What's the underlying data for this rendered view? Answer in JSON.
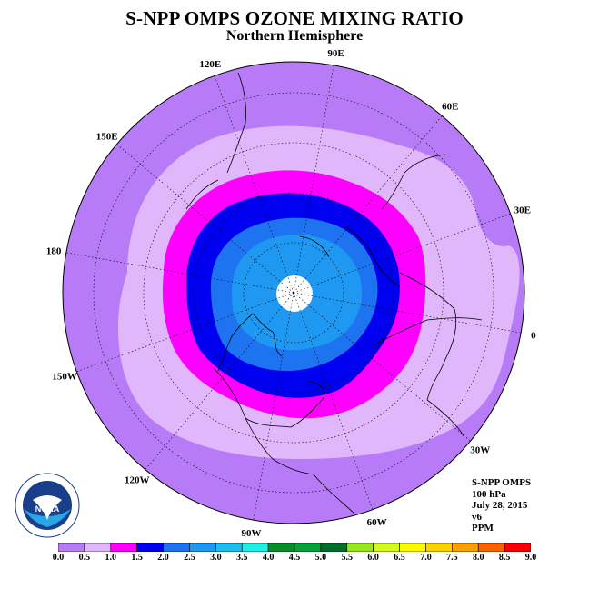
{
  "title": "S-NPP OMPS OZONE MIXING RATIO",
  "subtitle": "Northern Hemisphere",
  "longitude_labels": [
    "90E",
    "60E",
    "30E",
    "0",
    "30W",
    "60W",
    "90W",
    "120W",
    "150W",
    "180",
    "150E",
    "120E"
  ],
  "info": {
    "instrument": "S-NPP OMPS",
    "level": "100 hPa",
    "date": "July 28, 2015",
    "version": "v6",
    "units": "PPM"
  },
  "logo": {
    "text": "NOAA",
    "ring_text": "NATIONAL OCEANIC AND ATMOSPHERIC ADMINISTRATION · U.S. DEPARTMENT OF COMMERCE"
  },
  "colorbar": {
    "ticks": [
      "0.0",
      "0.5",
      "1.0",
      "1.5",
      "2.0",
      "2.5",
      "3.0",
      "3.5",
      "4.0",
      "4.5",
      "5.0",
      "5.5",
      "6.0",
      "6.5",
      "7.0",
      "7.5",
      "8.0",
      "8.5",
      "9.0"
    ],
    "colors": [
      "#b77bf8",
      "#e1b7fb",
      "#ff00ff",
      "#0000f0",
      "#1e73f0",
      "#1e98f0",
      "#1ebff0",
      "#1ef0e6",
      "#0a8c28",
      "#0aa03c",
      "#006e28",
      "#96e61e",
      "#d2fa1e",
      "#fafa00",
      "#fad200",
      "#faa000",
      "#fa6400",
      "#fa0000",
      "#966432"
    ]
  },
  "contour_colors": {
    "pole_gap": "#ffffff",
    "land_outline": "#000000",
    "grid": "#000000"
  }
}
